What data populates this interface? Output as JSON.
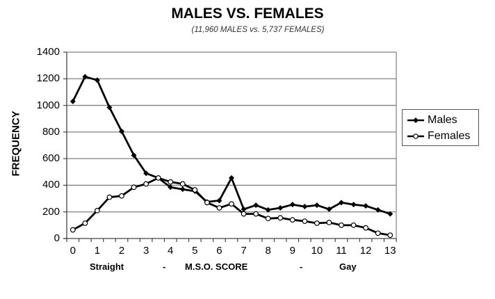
{
  "chart_data": {
    "type": "line",
    "title": "MALES VS. FEMALES",
    "subtitle": "(11,960 MALES vs. 5,737 FEMALES)",
    "xlabel": "M.S.O. SCORE",
    "xlabel_parts": [
      "Straight",
      "-",
      "M.S.O. SCORE",
      "-",
      "Gay"
    ],
    "ylabel": "FREQUENCY",
    "ylim": [
      0,
      1400
    ],
    "yticks": [
      0,
      200,
      400,
      600,
      800,
      1000,
      1200,
      1400
    ],
    "xticks": [
      0,
      1,
      2,
      3,
      4,
      5,
      6,
      7,
      8,
      9,
      10,
      11,
      12,
      13
    ],
    "grid": true,
    "legend_position": "right",
    "x": [
      0,
      0.5,
      1,
      1.5,
      2,
      2.5,
      3,
      3.5,
      4,
      4.5,
      5,
      5.5,
      6,
      6.5,
      7,
      7.5,
      8,
      8.5,
      9,
      9.5,
      10,
      10.5,
      11,
      11.5,
      12,
      12.5,
      13
    ],
    "series": [
      {
        "name": "Males",
        "marker": "filled-diamond",
        "values": [
          1030,
          1215,
          1190,
          985,
          805,
          625,
          490,
          455,
          385,
          370,
          355,
          275,
          285,
          455,
          220,
          250,
          215,
          230,
          255,
          240,
          250,
          220,
          270,
          255,
          245,
          215,
          185
        ]
      },
      {
        "name": "Females",
        "marker": "open-circle",
        "values": [
          65,
          115,
          210,
          310,
          320,
          385,
          410,
          455,
          425,
          410,
          365,
          270,
          230,
          260,
          185,
          185,
          150,
          155,
          140,
          130,
          115,
          120,
          100,
          100,
          80,
          40,
          25
        ]
      }
    ]
  },
  "legend": {
    "males": "Males",
    "females": "Females"
  },
  "colors": {
    "males": "#000000",
    "females": "#000000",
    "grid": "#808080"
  }
}
